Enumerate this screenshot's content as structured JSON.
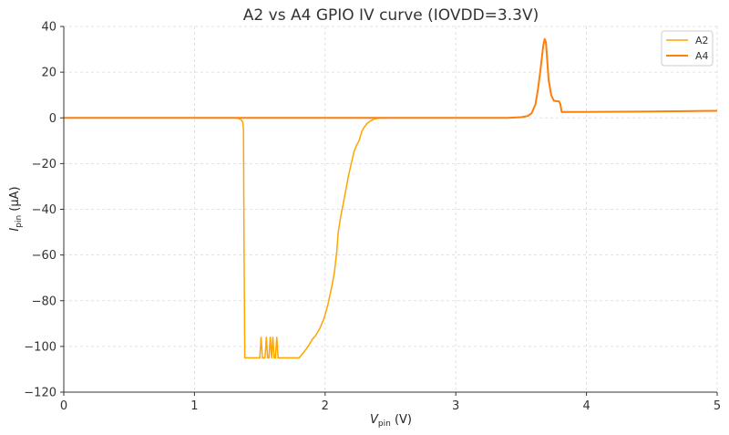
{
  "chart_data": {
    "type": "line",
    "title": "A2 vs A4 GPIO IV curve (IOVDD=3.3V)",
    "xlabel": {
      "main": "V",
      "sub": "pin",
      "unit": " (V)"
    },
    "ylabel": {
      "main": "I",
      "sub": "pin",
      "unit": " (μA)"
    },
    "xlim": [
      0,
      5
    ],
    "ylim": [
      -120,
      40
    ],
    "xticks": [
      0,
      1,
      2,
      3,
      4,
      5
    ],
    "yticks": [
      40,
      20,
      0,
      -20,
      -40,
      -60,
      -80,
      -100,
      -120
    ],
    "yticklabels": [
      "40",
      "20",
      "0",
      "−20",
      "−40",
      "−60",
      "−80",
      "−100",
      "−120"
    ],
    "grid": true,
    "legend_position": "top-right",
    "series": [
      {
        "name": "A2",
        "color": "#ffa500",
        "points": [
          [
            0,
            0
          ],
          [
            1.3,
            0
          ],
          [
            1.34,
            -0.3
          ],
          [
            1.36,
            -1.0
          ],
          [
            1.37,
            -2.0
          ],
          [
            1.375,
            -5
          ],
          [
            1.38,
            -60
          ],
          [
            1.385,
            -105
          ],
          [
            1.5,
            -105
          ],
          [
            1.51,
            -96
          ],
          [
            1.52,
            -105
          ],
          [
            1.54,
            -105
          ],
          [
            1.55,
            -96
          ],
          [
            1.56,
            -105
          ],
          [
            1.57,
            -105
          ],
          [
            1.58,
            -96
          ],
          [
            1.59,
            -105
          ],
          [
            1.6,
            -96
          ],
          [
            1.61,
            -105
          ],
          [
            1.62,
            -105
          ],
          [
            1.63,
            -96
          ],
          [
            1.64,
            -105
          ],
          [
            1.8,
            -105
          ],
          [
            1.83,
            -103
          ],
          [
            1.87,
            -100
          ],
          [
            1.9,
            -97
          ],
          [
            1.93,
            -95
          ],
          [
            1.96,
            -92
          ],
          [
            1.99,
            -88
          ],
          [
            2.02,
            -82
          ],
          [
            2.05,
            -74
          ],
          [
            2.07,
            -68
          ],
          [
            2.09,
            -58
          ],
          [
            2.1,
            -50
          ],
          [
            2.12,
            -43
          ],
          [
            2.14,
            -37
          ],
          [
            2.16,
            -31
          ],
          [
            2.18,
            -25
          ],
          [
            2.2,
            -20
          ],
          [
            2.22,
            -15
          ],
          [
            2.24,
            -12
          ],
          [
            2.26,
            -10
          ],
          [
            2.28,
            -6
          ],
          [
            2.3,
            -4
          ],
          [
            2.32,
            -2.5
          ],
          [
            2.35,
            -1.2
          ],
          [
            2.38,
            -0.4
          ],
          [
            2.42,
            -0.1
          ],
          [
            2.5,
            0
          ],
          [
            3.4,
            0
          ],
          [
            3.5,
            0.3
          ],
          [
            3.55,
            0.8
          ],
          [
            3.58,
            2
          ],
          [
            3.61,
            6
          ],
          [
            3.63,
            13
          ],
          [
            3.65,
            22
          ],
          [
            3.67,
            32
          ],
          [
            3.68,
            34
          ],
          [
            3.69,
            32
          ],
          [
            3.7,
            24
          ],
          [
            3.71,
            16
          ],
          [
            3.73,
            10
          ],
          [
            3.75,
            7.5
          ],
          [
            3.79,
            7.2
          ],
          [
            3.8,
            6
          ],
          [
            3.81,
            2.5
          ],
          [
            4.0,
            2.6
          ],
          [
            4.5,
            2.8
          ],
          [
            5.0,
            3.1
          ]
        ]
      },
      {
        "name": "A4",
        "color": "#ff7f0e",
        "points": [
          [
            0,
            0
          ],
          [
            3.4,
            0
          ],
          [
            3.5,
            0.3
          ],
          [
            3.55,
            0.8
          ],
          [
            3.58,
            2
          ],
          [
            3.61,
            6
          ],
          [
            3.63,
            13
          ],
          [
            3.65,
            22
          ],
          [
            3.67,
            32
          ],
          [
            3.68,
            34.5
          ],
          [
            3.69,
            33
          ],
          [
            3.7,
            25
          ],
          [
            3.71,
            17
          ],
          [
            3.73,
            10
          ],
          [
            3.75,
            7.5
          ],
          [
            3.79,
            7.2
          ],
          [
            3.8,
            6
          ],
          [
            3.81,
            2.6
          ],
          [
            4.0,
            2.6
          ],
          [
            4.5,
            2.8
          ],
          [
            5.0,
            3.1
          ]
        ]
      }
    ]
  }
}
